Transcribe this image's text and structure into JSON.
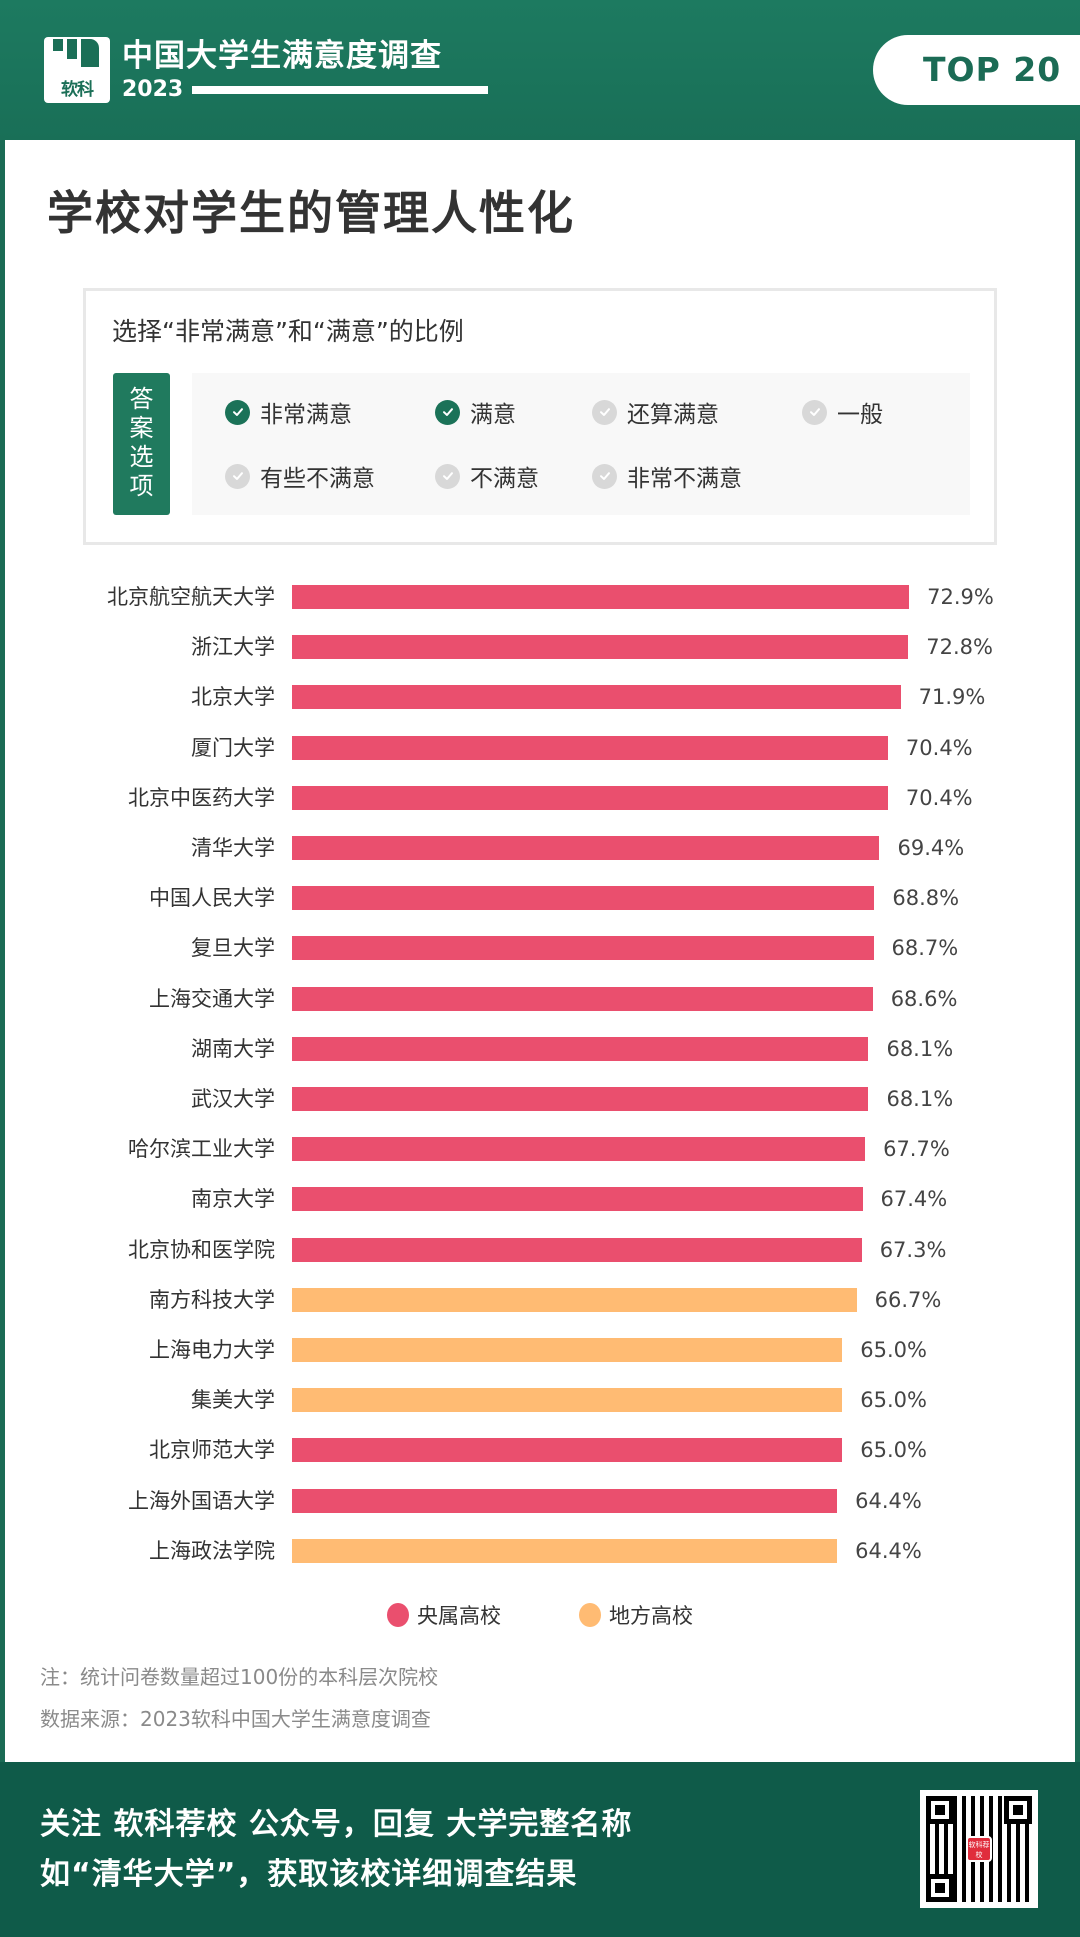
{
  "header": {
    "logo_text": "软科",
    "brand_title": "中国大学生满意度调查",
    "brand_year": "2023",
    "badge": "TOP 20"
  },
  "page_title": "学校对学生的管理人性化",
  "options_box": {
    "title": "选择“非常满意”和“满意”的比例",
    "tag": "答案选项",
    "options": [
      {
        "label": "非常满意",
        "checked": true,
        "icon": "check-circle-icon"
      },
      {
        "label": "满意",
        "checked": true,
        "icon": "check-circle-icon"
      },
      {
        "label": "还算满意",
        "checked": false,
        "icon": "check-circle-icon"
      },
      {
        "label": "一般",
        "checked": false,
        "icon": "check-circle-icon"
      },
      {
        "label": "有些不满意",
        "checked": false,
        "icon": "check-circle-icon"
      },
      {
        "label": "不满意",
        "checked": false,
        "icon": "check-circle-icon"
      },
      {
        "label": "非常不满意",
        "checked": false,
        "icon": "check-circle-icon"
      }
    ]
  },
  "colors": {
    "central": "#ea4f6e",
    "local": "#ffbb73",
    "brand_green": "#1b6b55",
    "footer_green": "#0f5b49"
  },
  "chart_data": {
    "type": "bar",
    "orientation": "horizontal",
    "title": "学校对学生的管理人性化",
    "subtitle": "选择“非常满意”和“满意”的比例",
    "xlabel": "",
    "ylabel": "",
    "unit": "%",
    "grid": false,
    "legend_position": "bottom",
    "categories": [
      "北京航空航天大学",
      "浙江大学",
      "北京大学",
      "厦门大学",
      "北京中医药大学",
      "清华大学",
      "中国人民大学",
      "复旦大学",
      "上海交通大学",
      "湖南大学",
      "武汉大学",
      "哈尔滨工业大学",
      "南京大学",
      "北京协和医学院",
      "南方科技大学",
      "上海电力大学",
      "集美大学",
      "北京师范大学",
      "上海外国语大学",
      "上海政法学院"
    ],
    "values": [
      72.9,
      72.8,
      71.9,
      70.4,
      70.4,
      69.4,
      68.8,
      68.7,
      68.6,
      68.1,
      68.1,
      67.7,
      67.4,
      67.3,
      66.7,
      65.0,
      65.0,
      65.0,
      64.4,
      64.4
    ],
    "value_labels": [
      "72.9%",
      "72.8%",
      "71.9%",
      "70.4%",
      "70.4%",
      "69.4%",
      "68.8%",
      "68.7%",
      "68.6%",
      "68.1%",
      "68.1%",
      "67.7%",
      "67.4%",
      "67.3%",
      "66.7%",
      "65.0%",
      "65.0%",
      "65.0%",
      "64.4%",
      "64.4%"
    ],
    "groups": [
      "central",
      "central",
      "central",
      "central",
      "central",
      "central",
      "central",
      "central",
      "central",
      "central",
      "central",
      "central",
      "central",
      "central",
      "local",
      "local",
      "local",
      "central",
      "central",
      "local"
    ],
    "legend": [
      {
        "key": "central",
        "label": "央属高校",
        "color": "#ea4f6e"
      },
      {
        "key": "local",
        "label": "地方高校",
        "color": "#ffbb73"
      }
    ]
  },
  "notes": {
    "note": "注：统计问卷数量超过100份的本科层次院校",
    "source": "数据来源：2023软科中国大学生满意度调查"
  },
  "footer": {
    "line1": "关注 软科荐校 公众号，回复 大学完整名称",
    "line2": "如“清华大学”，获取该校详细调查结果",
    "qr_center_text": "软科荐校"
  }
}
